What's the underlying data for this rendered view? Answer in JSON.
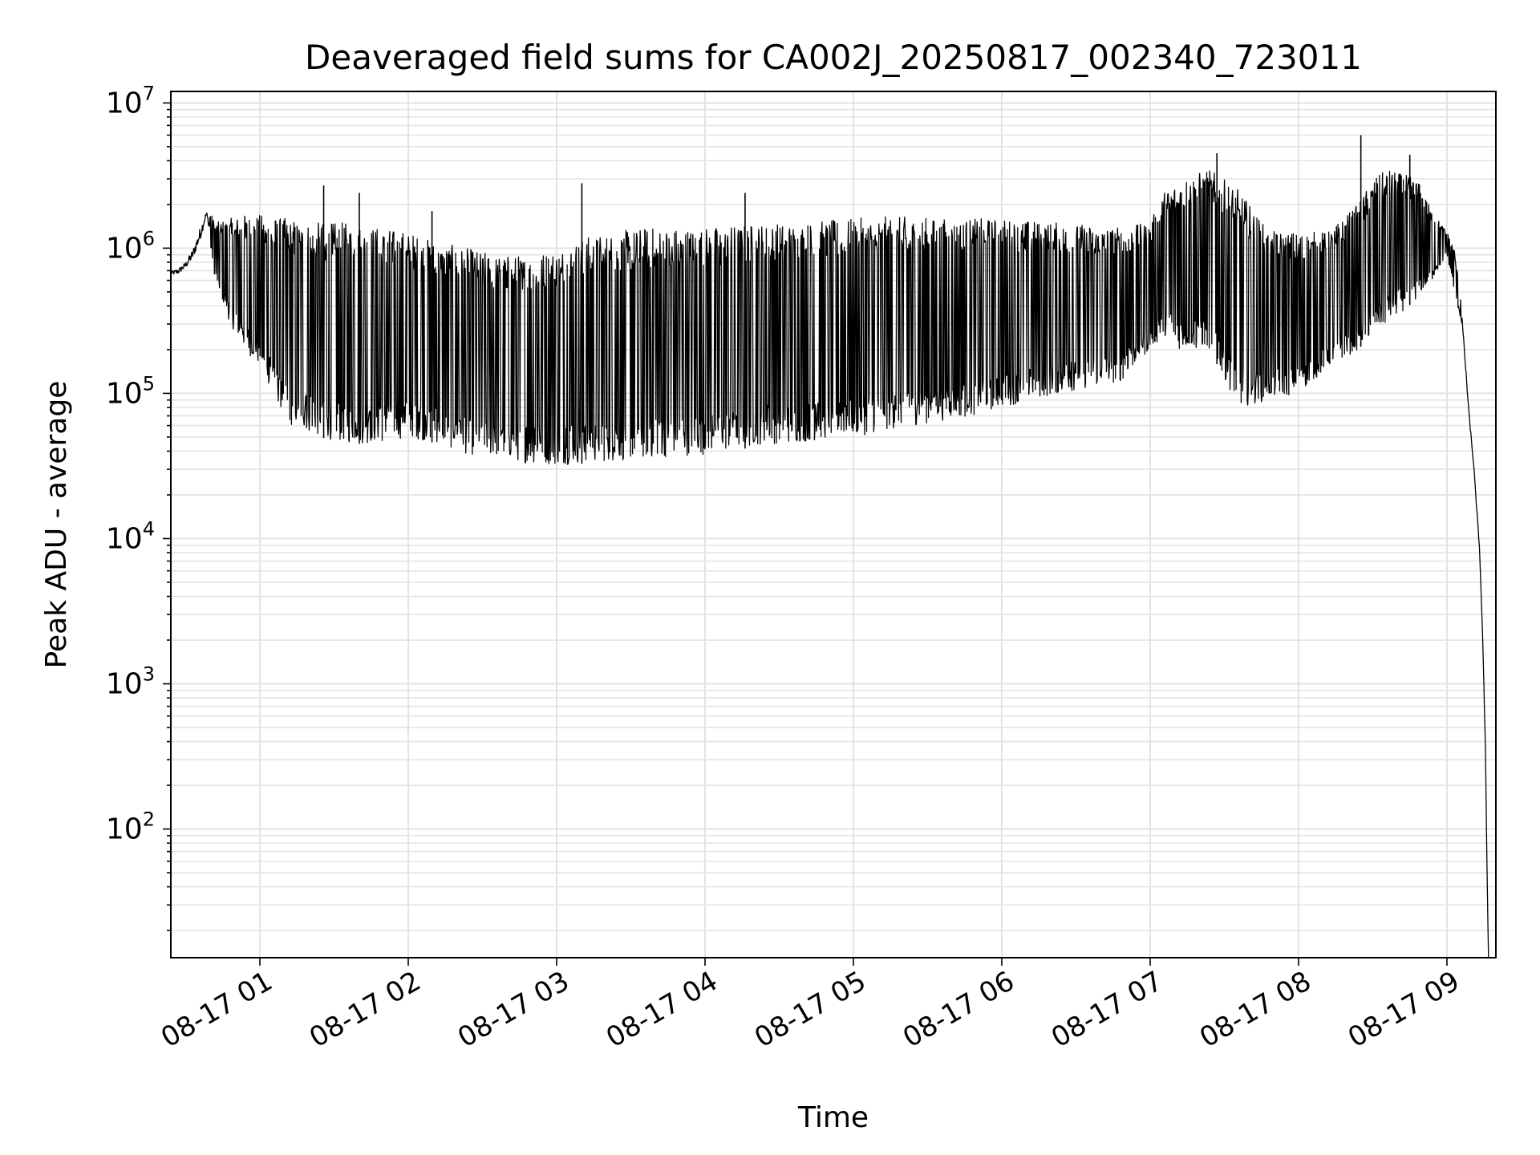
{
  "chart_data": {
    "type": "line",
    "title": "Deaveraged field sums for CA002J_20250817_002340_723011",
    "xlabel": "Time",
    "ylabel": "Peak ADU - average",
    "yscale": "log",
    "ylim": [
      13,
      12000000
    ],
    "xlim_hours": [
      0.4,
      9.33
    ],
    "grid": true,
    "legend": "none",
    "line_color": "#000000",
    "grid_color": "#e3e3e3",
    "x_ticks": [
      {
        "hour": 1,
        "label": "08-17 01"
      },
      {
        "hour": 2,
        "label": "08-17 02"
      },
      {
        "hour": 3,
        "label": "08-17 03"
      },
      {
        "hour": 4,
        "label": "08-17 04"
      },
      {
        "hour": 5,
        "label": "08-17 05"
      },
      {
        "hour": 6,
        "label": "08-17 06"
      },
      {
        "hour": 7,
        "label": "08-17 07"
      },
      {
        "hour": 8,
        "label": "08-17 08"
      },
      {
        "hour": 9,
        "label": "08-17 09"
      }
    ],
    "y_ticks": [
      {
        "exp": 2,
        "base": "10",
        "sup": "2"
      },
      {
        "exp": 3,
        "base": "10",
        "sup": "3"
      },
      {
        "exp": 4,
        "base": "10",
        "sup": "4"
      },
      {
        "exp": 5,
        "base": "10",
        "sup": "5"
      },
      {
        "exp": 6,
        "base": "10",
        "sup": "6"
      },
      {
        "exp": 7,
        "base": "10",
        "sup": "7"
      }
    ],
    "series": [
      {
        "x_hours": [
          0.4,
          0.45,
          0.5,
          0.55,
          0.6,
          0.64,
          0.7,
          0.8,
          0.9,
          1.0,
          1.2,
          1.4,
          1.6,
          1.8,
          2.0,
          2.2,
          2.4,
          2.6,
          2.8,
          3.0,
          3.2,
          3.4,
          3.6,
          3.8,
          4.0,
          4.2,
          4.4,
          4.6,
          4.8,
          5.0,
          5.2,
          5.4,
          5.6,
          5.8,
          6.0,
          6.2,
          6.4,
          6.6,
          6.8,
          7.0,
          7.1,
          7.2,
          7.4,
          7.6,
          7.8,
          8.0,
          8.2,
          8.4,
          8.5,
          8.6,
          8.8,
          8.9,
          9.0,
          9.05,
          9.1,
          9.15,
          9.18,
          9.2,
          9.22,
          9.24,
          9.26,
          9.27,
          9.28
        ],
        "lower": [
          600000,
          600000,
          650000,
          700000,
          900000,
          1500000,
          600000,
          300000,
          200000,
          150000,
          60000,
          50000,
          45000,
          45000,
          50000,
          45000,
          38000,
          36000,
          33000,
          32000,
          33000,
          34000,
          35000,
          37000,
          38000,
          40000,
          45000,
          45000,
          48000,
          50000,
          55000,
          60000,
          65000,
          70000,
          80000,
          90000,
          100000,
          110000,
          120000,
          200000,
          250000,
          200000,
          200000,
          80000,
          90000,
          100000,
          150000,
          200000,
          250000,
          300000,
          450000,
          600000,
          900000,
          500000,
          300000,
          60000,
          30000,
          15000,
          8000,
          2000,
          300,
          50,
          13
        ],
        "upper": [
          750000,
          800000,
          900000,
          1200000,
          1800000,
          2000000,
          1500000,
          1600000,
          1700000,
          1700000,
          1600000,
          1500000,
          1500000,
          1400000,
          1300000,
          1100000,
          1000000,
          900000,
          900000,
          1000000,
          1200000,
          1300000,
          1400000,
          1400000,
          1400000,
          1450000,
          1500000,
          1500000,
          1550000,
          1600000,
          1650000,
          1650000,
          1600000,
          1600000,
          1600000,
          1550000,
          1500000,
          1450000,
          1400000,
          1500000,
          2500000,
          3000000,
          3500000,
          2500000,
          1300000,
          1300000,
          1300000,
          2000000,
          3000000,
          3500000,
          3000000,
          1800000,
          1300000,
          1000000,
          400000,
          80000,
          35000,
          18000,
          9000,
          2500,
          400,
          60,
          13
        ]
      }
    ],
    "spikes": [
      {
        "hour": 1.43,
        "value": 2700000
      },
      {
        "hour": 1.67,
        "value": 2400000
      },
      {
        "hour": 2.16,
        "value": 1800000
      },
      {
        "hour": 3.17,
        "value": 2800000
      },
      {
        "hour": 4.27,
        "value": 2400000
      },
      {
        "hour": 7.45,
        "value": 4500000
      },
      {
        "hour": 8.42,
        "value": 6000000
      },
      {
        "hour": 8.75,
        "value": 4400000
      }
    ]
  }
}
